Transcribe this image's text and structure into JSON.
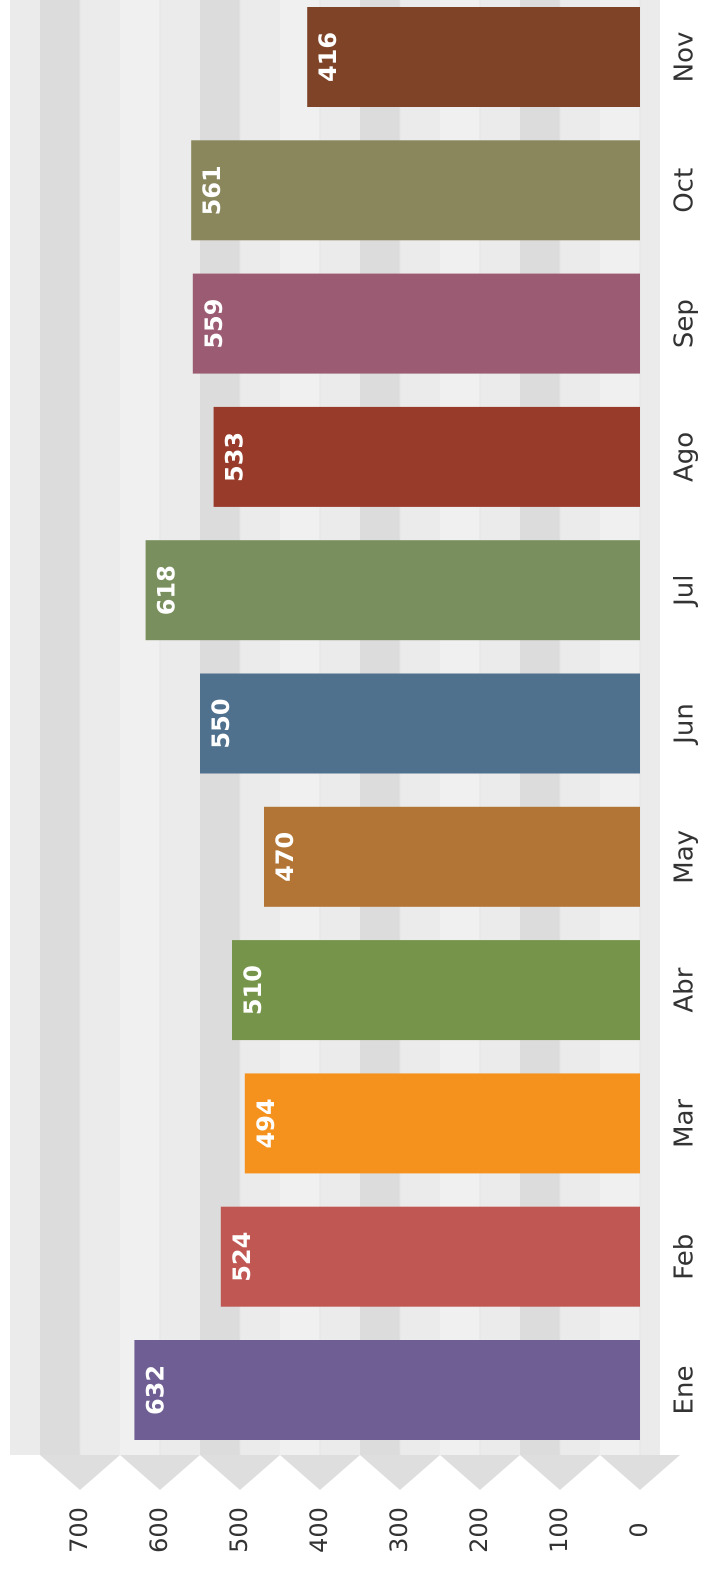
{
  "chart_data": {
    "type": "bar",
    "categories": [
      "Ene",
      "Feb",
      "Mar",
      "Abr",
      "May",
      "Jun",
      "Jul",
      "Ago",
      "Sep",
      "Oct",
      "Nov"
    ],
    "values": [
      632,
      524,
      494,
      510,
      470,
      550,
      618,
      533,
      559,
      561,
      416
    ],
    "colors": [
      "#6f5e94",
      "#c05753",
      "#f5921e",
      "#76944a",
      "#b37535",
      "#4f718d",
      "#798f5d",
      "#993b2a",
      "#9b5b72",
      "#8a875c",
      "#7f4428"
    ],
    "ylim": [
      0,
      700
    ],
    "yticks": [
      0,
      100,
      200,
      300,
      400,
      500,
      600,
      700
    ],
    "grid": true
  }
}
